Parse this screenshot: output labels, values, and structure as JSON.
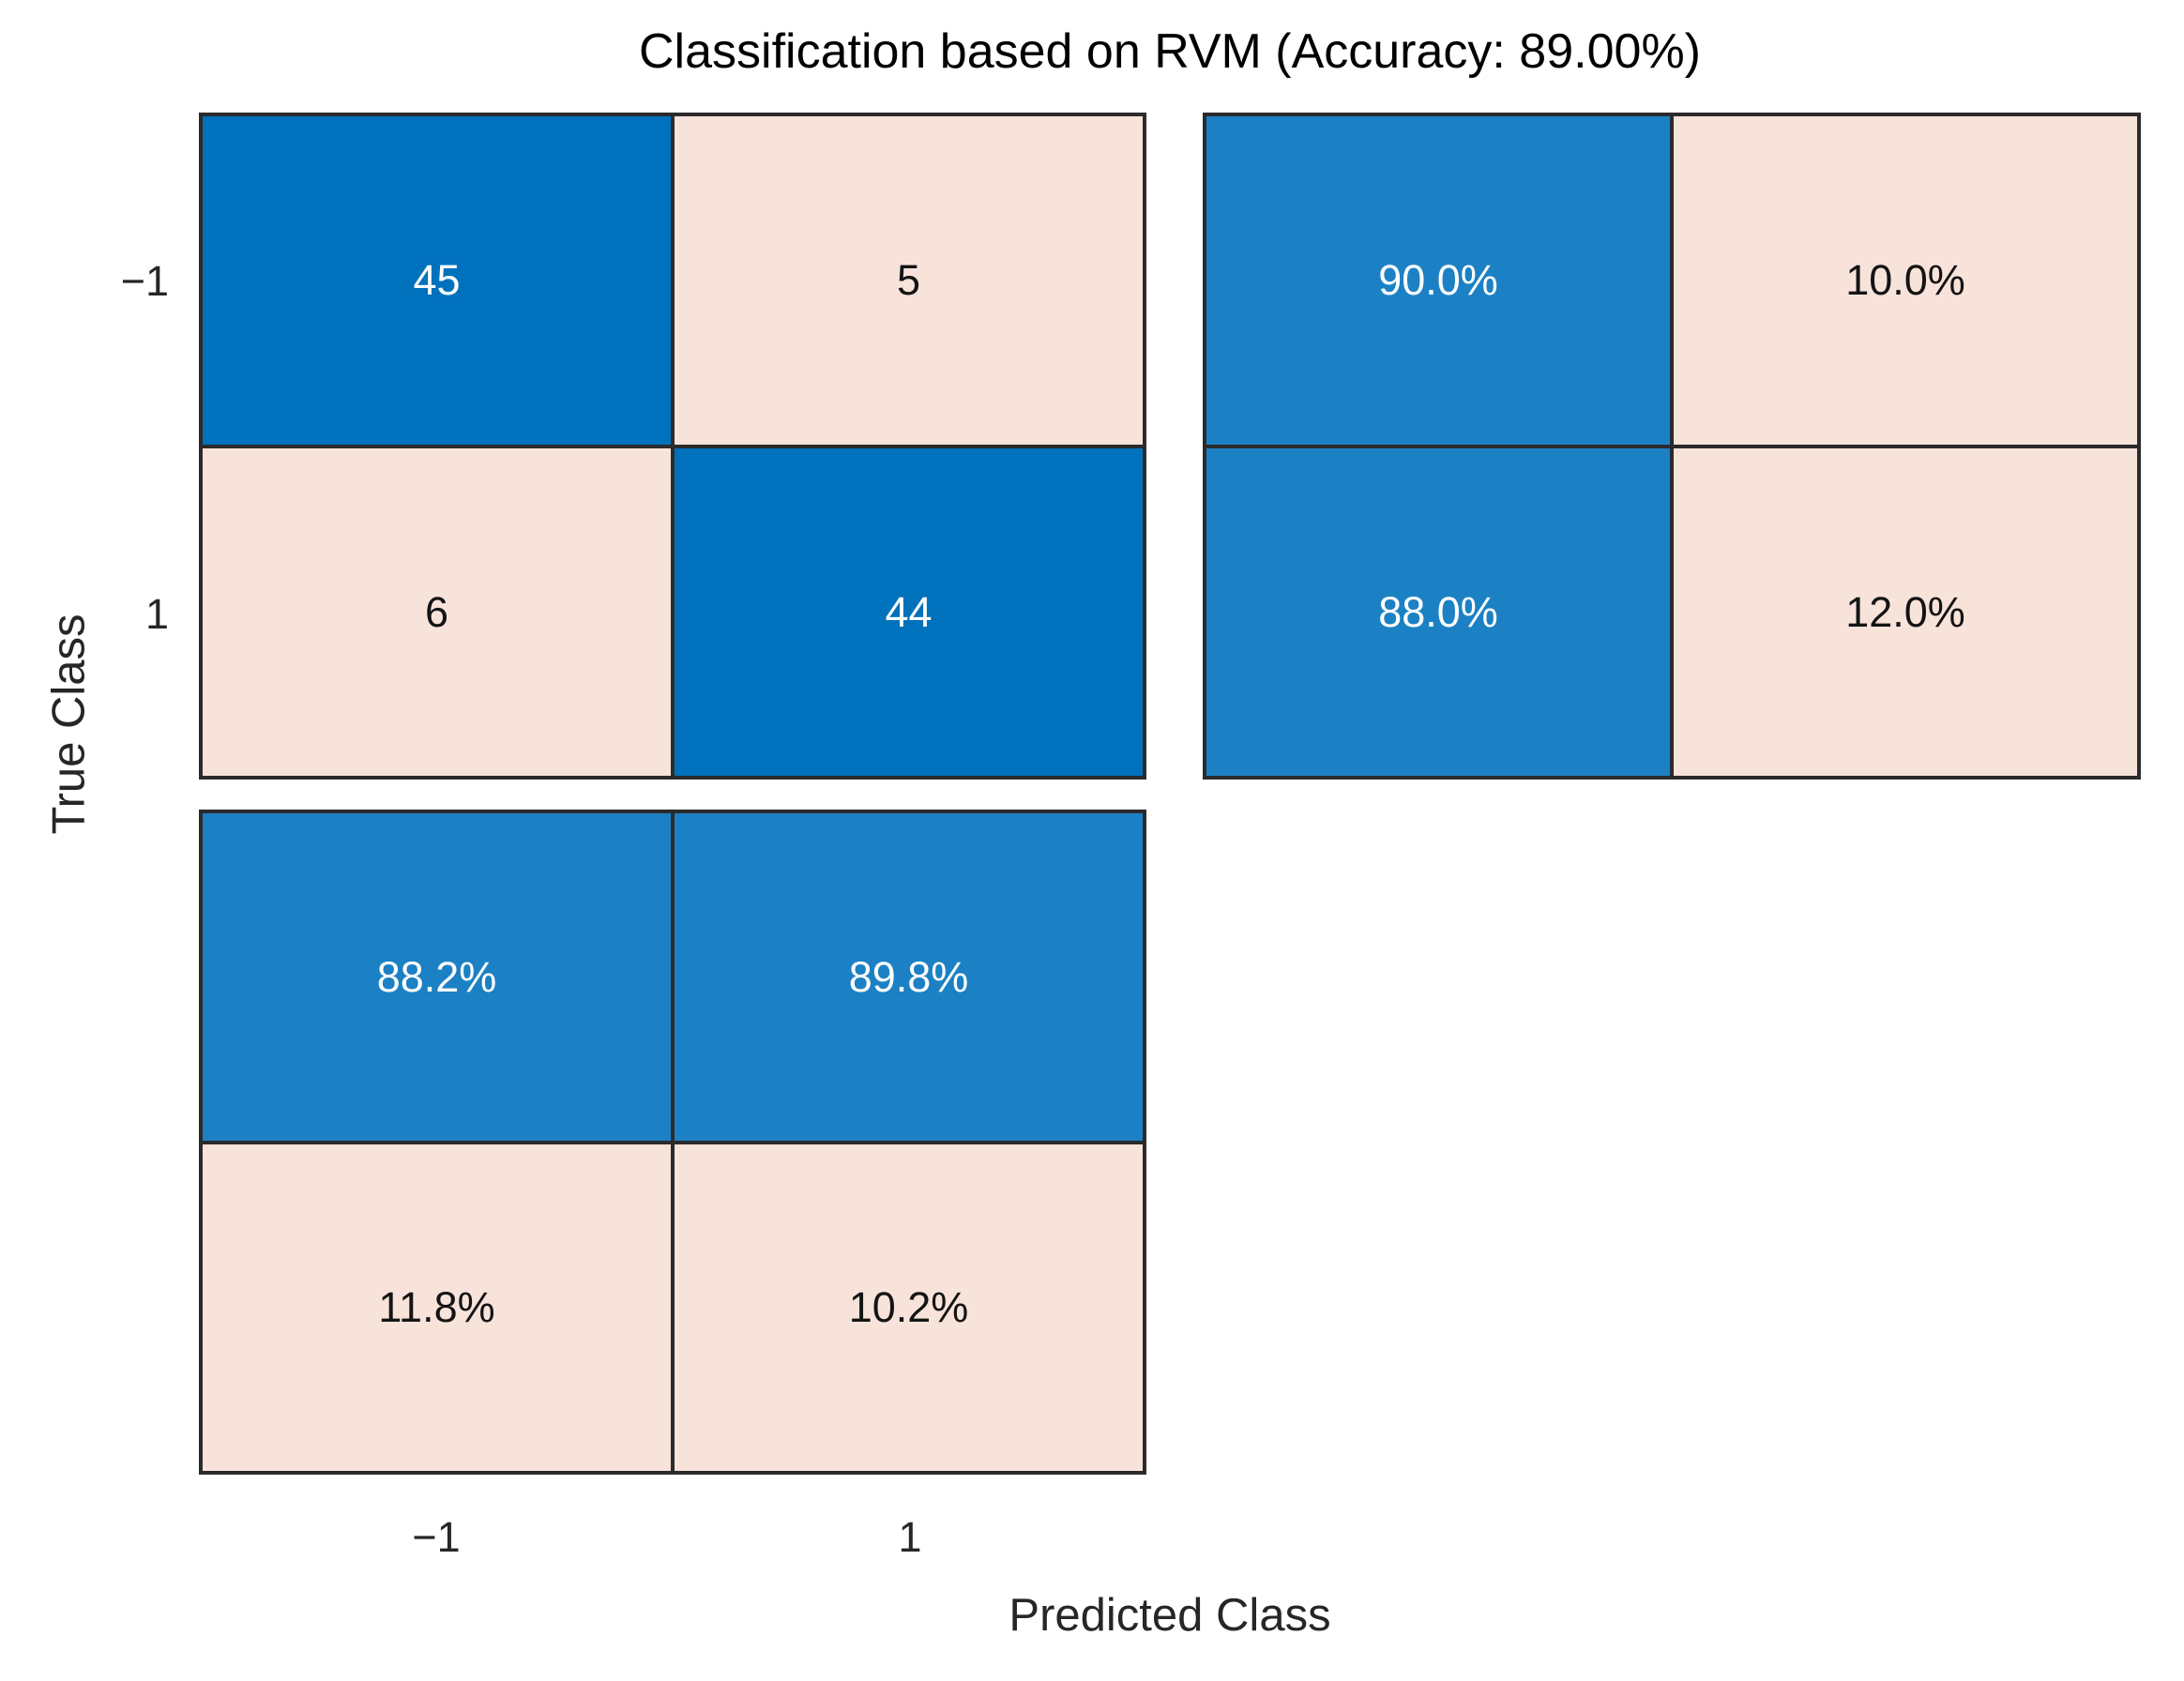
{
  "title": "Classification based on RVM (Accuracy: 89.00%)",
  "axes": {
    "x_label": "Predicted Class",
    "y_label": "True Class",
    "x_ticks": [
      "−1",
      "1"
    ],
    "y_ticks": [
      "−1",
      "1"
    ]
  },
  "colors": {
    "diagonal_blue": "#0071BC",
    "summary_blue": "#1C81C4",
    "off_diagonal_pink": "#F8E3DA",
    "grid_border": "#2B2B2B",
    "cell_text_dark": "#141414",
    "cell_text_light": "#FFFFFF"
  },
  "chart_data": {
    "type": "heatmap",
    "variant": "confusion-matrix-with-summaries",
    "title": "Classification based on RVM (Accuracy: 89.00%)",
    "xlabel": "Predicted Class",
    "ylabel": "True Class",
    "classes": [
      "-1",
      "1"
    ],
    "confusion_counts": [
      [
        45,
        5
      ],
      [
        6,
        44
      ]
    ],
    "row_summary_pct": [
      [
        90.0,
        10.0
      ],
      [
        88.0,
        12.0
      ]
    ],
    "column_summary_pct": [
      [
        88.2,
        89.8
      ],
      [
        11.8,
        10.2
      ]
    ],
    "accuracy_pct": 89.0,
    "legend": "off",
    "grid": "off"
  },
  "cells": {
    "main": [
      {
        "label": "45",
        "bg": "#0071BC",
        "fg": "#FFFFFF"
      },
      {
        "label": "5",
        "bg": "#F8E3DA",
        "fg": "#141414"
      },
      {
        "label": "6",
        "bg": "#F8E3DA",
        "fg": "#141414"
      },
      {
        "label": "44",
        "bg": "#0071BC",
        "fg": "#FFFFFF"
      }
    ],
    "row_summary": [
      {
        "label": "90.0%",
        "bg": "#1C81C4",
        "fg": "#FFFFFF"
      },
      {
        "label": "10.0%",
        "bg": "#F8E3DA",
        "fg": "#141414"
      },
      {
        "label": "88.0%",
        "bg": "#1C81C4",
        "fg": "#FFFFFF"
      },
      {
        "label": "12.0%",
        "bg": "#F8E3DA",
        "fg": "#141414"
      }
    ],
    "col_summary": [
      {
        "label": "88.2%",
        "bg": "#1C81C4",
        "fg": "#FFFFFF"
      },
      {
        "label": "89.8%",
        "bg": "#1C81C4",
        "fg": "#FFFFFF"
      },
      {
        "label": "11.8%",
        "bg": "#F8E3DA",
        "fg": "#141414"
      },
      {
        "label": "10.2%",
        "bg": "#F8E3DA",
        "fg": "#141414"
      }
    ]
  }
}
